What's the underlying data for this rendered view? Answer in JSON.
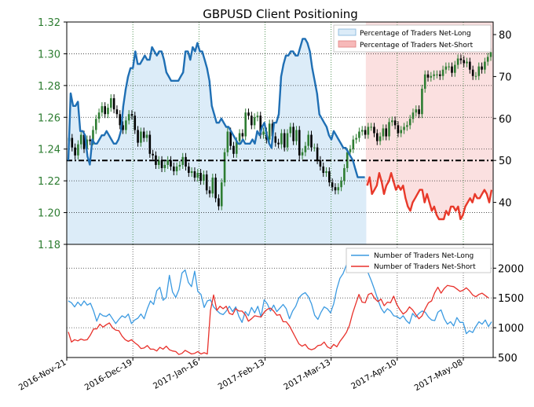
{
  "chart_data": {
    "title": "GBPUSD Client Positioning",
    "x_tick_labels": [
      "2016-Nov-21",
      "2016-Dec-19",
      "2017-Jan-16",
      "2017-Feb-13",
      "2017-Mar-13",
      "2017-Apr-10",
      "2017-May-08"
    ],
    "panels": [
      {
        "type": "candlestick+line",
        "left_axis": {
          "range": [
            1.18,
            1.32
          ],
          "ticks": [
            "1.18",
            "1.20",
            "1.22",
            "1.24",
            "1.26",
            "1.28",
            "1.30",
            "1.32"
          ]
        },
        "right_axis": {
          "range": [
            30,
            83
          ],
          "ticks": [
            "40",
            "50",
            "60",
            "70",
            "80"
          ]
        },
        "reference_line": 50,
        "legend": [
          "Percentage of Traders Net-Long",
          "Percentage of Traders Net-Short"
        ],
        "price_close": [
          1.247,
          1.241,
          1.236,
          1.243,
          1.249,
          1.24,
          1.246,
          1.245,
          1.252,
          1.259,
          1.263,
          1.267,
          1.262,
          1.266,
          1.272,
          1.265,
          1.262,
          1.255,
          1.252,
          1.258,
          1.262,
          1.261,
          1.252,
          1.244,
          1.251,
          1.247,
          1.249,
          1.237,
          1.236,
          1.23,
          1.233,
          1.228,
          1.23,
          1.233,
          1.229,
          1.226,
          1.229,
          1.23,
          1.235,
          1.229,
          1.225,
          1.226,
          1.222,
          1.225,
          1.22,
          1.224,
          1.214,
          1.212,
          1.222,
          1.209,
          1.204,
          1.219,
          1.238,
          1.251,
          1.242,
          1.237,
          1.245,
          1.25,
          1.248,
          1.263,
          1.261,
          1.255,
          1.26,
          1.261,
          1.249,
          1.251,
          1.246,
          1.256,
          1.248,
          1.244,
          1.243,
          1.25,
          1.241,
          1.25,
          1.254,
          1.245,
          1.252,
          1.236,
          1.238,
          1.242,
          1.249,
          1.241,
          1.241,
          1.233,
          1.229,
          1.225,
          1.226,
          1.219,
          1.216,
          1.214,
          1.216,
          1.22,
          1.228,
          1.238,
          1.24,
          1.246,
          1.247,
          1.251,
          1.252,
          1.249,
          1.254,
          1.254,
          1.25,
          1.245,
          1.248,
          1.253,
          1.248,
          1.257,
          1.258,
          1.255,
          1.25,
          1.252,
          1.254,
          1.255,
          1.259,
          1.263,
          1.265,
          1.262,
          1.278,
          1.287,
          1.285,
          1.286,
          1.287,
          1.287,
          1.286,
          1.29,
          1.292,
          1.292,
          1.288,
          1.293,
          1.297,
          1.296,
          1.294,
          1.295,
          1.29,
          1.286,
          1.286,
          1.292,
          1.29,
          1.295,
          1.298,
          1.301
        ],
        "net_long_pct": [
          50,
          66,
          63,
          63,
          64,
          57,
          57,
          56,
          51,
          49,
          55,
          54,
          54,
          55,
          56,
          56,
          57,
          56,
          55,
          54,
          54,
          55,
          57,
          63,
          67,
          70,
          72,
          72,
          76,
          73,
          73,
          74,
          75,
          74,
          74,
          77,
          76,
          75,
          76,
          76,
          74,
          71,
          70,
          69,
          69,
          69,
          69,
          70,
          71,
          76,
          76,
          74,
          77,
          76,
          78,
          76,
          76,
          74,
          72,
          69,
          63,
          61,
          59,
          59,
          60,
          59,
          58,
          58,
          57,
          56,
          55,
          54,
          54,
          55,
          54,
          54,
          54,
          55,
          54,
          57,
          56,
          58,
          59,
          56,
          54,
          53,
          59,
          59,
          61,
          70,
          73,
          75,
          75,
          76,
          76,
          75,
          75,
          77,
          79,
          79,
          78,
          76,
          72,
          69,
          66,
          61,
          60,
          59,
          58,
          56,
          55,
          57,
          56,
          55,
          54,
          53,
          53,
          52,
          51,
          50,
          48,
          46,
          46,
          46,
          46
        ],
        "net_short_pct": [
          44,
          46,
          42,
          43,
          44,
          47,
          45,
          42,
          44,
          45,
          47,
          45,
          43,
          44,
          43,
          44,
          41,
          39,
          38,
          40,
          41,
          42,
          43,
          43,
          40,
          42,
          40,
          38,
          39,
          37,
          36,
          36,
          36,
          38,
          37,
          39,
          39,
          38,
          39,
          36,
          37,
          39,
          40,
          41,
          40,
          42,
          41,
          41,
          42,
          43,
          42,
          40,
          43
        ]
      },
      {
        "type": "line",
        "right_axis": {
          "range": [
            500,
            2400
          ],
          "ticks": [
            "500",
            "1000",
            "1500",
            "2000"
          ]
        },
        "legend": [
          "Number of Traders Net-Long",
          "Number of Traders Net-Short"
        ],
        "net_long_count": [
          1450,
          1420,
          1350,
          1430,
          1370,
          1450,
          1380,
          1410,
          1280,
          1110,
          1240,
          1200,
          1190,
          1230,
          1150,
          1070,
          1140,
          1200,
          1170,
          1230,
          1070,
          1130,
          1160,
          1230,
          1150,
          1320,
          1450,
          1390,
          1620,
          1680,
          1460,
          1510,
          1880,
          1600,
          1510,
          1640,
          1920,
          1970,
          1760,
          1690,
          1950,
          1610,
          1560,
          1340,
          1450,
          1470,
          1350,
          1290,
          1240,
          1220,
          1280,
          1360,
          1270,
          1350,
          1190,
          1090,
          1270,
          1200,
          1340,
          1250,
          1360,
          1180,
          1470,
          1400,
          1280,
          1380,
          1270,
          1330,
          1390,
          1320,
          1150,
          1280,
          1360,
          1500,
          1560,
          1590,
          1520,
          1400,
          1210,
          1140,
          1260,
          1350,
          1320,
          1250,
          1400,
          1650,
          1830,
          1910,
          2050,
          2100,
          2200,
          2240,
          2180,
          2140,
          2100,
          1910,
          1780,
          1630,
          1470,
          1330,
          1250,
          1320,
          1280,
          1200,
          1190,
          1150,
          1200,
          1120,
          1070,
          1240,
          1180,
          1240,
          1280,
          1260,
          1180,
          1130,
          1120,
          1260,
          1300,
          1150,
          1060,
          1100,
          1030,
          1170,
          1090,
          1090,
          900,
          950,
          920,
          1020,
          1100,
          1060,
          1130,
          1020,
          1100
        ],
        "net_short_count": [
          930,
          760,
          800,
          780,
          810,
          790,
          800,
          880,
          980,
          980,
          1060,
          1010,
          1050,
          1080,
          1000,
          960,
          950,
          860,
          800,
          770,
          800,
          750,
          710,
          650,
          660,
          700,
          640,
          640,
          610,
          670,
          640,
          690,
          630,
          610,
          600,
          550,
          570,
          620,
          590,
          560,
          570,
          600,
          560,
          580,
          560,
          1290,
          1550,
          1290,
          1360,
          1320,
          1360,
          1240,
          1220,
          1320,
          1280,
          1280,
          1220,
          1110,
          1150,
          1200,
          1190,
          1180,
          1260,
          1310,
          1330,
          1280,
          1210,
          1220,
          1100,
          1100,
          1030,
          930,
          830,
          730,
          690,
          720,
          650,
          630,
          650,
          700,
          710,
          760,
          680,
          650,
          720,
          680,
          770,
          840,
          920,
          1040,
          1240,
          1400,
          1560,
          1430,
          1420,
          1560,
          1580,
          1490,
          1440,
          1480,
          1370,
          1430,
          1420,
          1530,
          1390,
          1300,
          1230,
          1270,
          1350,
          1300,
          1220,
          1150,
          1200,
          1320,
          1420,
          1450,
          1590,
          1680,
          1580,
          1660,
          1710,
          1700,
          1690,
          1650,
          1610,
          1630,
          1670,
          1620,
          1550,
          1520,
          1560,
          1580,
          1540,
          1500
        ]
      }
    ],
    "colors": {
      "price_up": "#2e7d32",
      "price_down": "#000000",
      "long": "#1f6fb4",
      "short": "#e8392a",
      "long_small": "#3b9ae1",
      "short_small": "#e8312b",
      "long_fill": "#dcecf8",
      "short_fill": "#fbe0e0",
      "grid": "#2e7d32",
      "left_tick_color": "#2e7d32"
    }
  }
}
